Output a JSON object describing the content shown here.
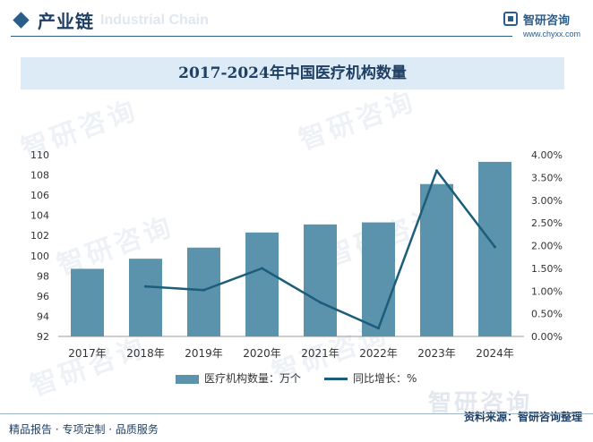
{
  "header": {
    "section_title": "产业链",
    "section_subtitle": "Industrial Chain",
    "brand_name": "智研咨询",
    "brand_url": "www.chyxx.com"
  },
  "watermarks": [
    "智研咨询",
    "智研咨询",
    "智研咨询",
    "智研咨询",
    "智研咨询",
    "智研咨询"
  ],
  "chart_data": {
    "type": "bar",
    "title": "2017-2024年中国医疗机构数量",
    "categories": [
      "2017年",
      "2018年",
      "2019年",
      "2020年",
      "2021年",
      "2022年",
      "2023年",
      "2024年"
    ],
    "series": [
      {
        "name": "医疗机构数量：万个",
        "type": "bar",
        "axis": "left",
        "values": [
          98.7,
          99.7,
          100.8,
          102.3,
          103.1,
          103.3,
          107.1,
          109.3
        ]
      },
      {
        "name": "同比增长：%",
        "type": "line",
        "axis": "right",
        "values": [
          null,
          1.1,
          1.02,
          1.5,
          0.75,
          0.18,
          3.65,
          1.97
        ]
      }
    ],
    "ylim": [
      92,
      110
    ],
    "yticks": [
      "92",
      "94",
      "96",
      "98",
      "100",
      "102",
      "104",
      "106",
      "108",
      "110"
    ],
    "y2lim": [
      0,
      4
    ],
    "y2ticks": [
      "0.00%",
      "0.50%",
      "1.00%",
      "1.50%",
      "2.00%",
      "2.50%",
      "3.00%",
      "3.50%",
      "4.00%"
    ],
    "colors": {
      "bar": "#5b93ad",
      "line": "#1b5d7a"
    }
  },
  "legend": {
    "bar_label": "医疗机构数量：万个",
    "line_label": "同比增长：%"
  },
  "footer": {
    "left_text": "精品报告 · 专项定制 · 品质服务",
    "source_text": "资料来源：智研咨询整理",
    "source_logo": "智研咨询"
  }
}
